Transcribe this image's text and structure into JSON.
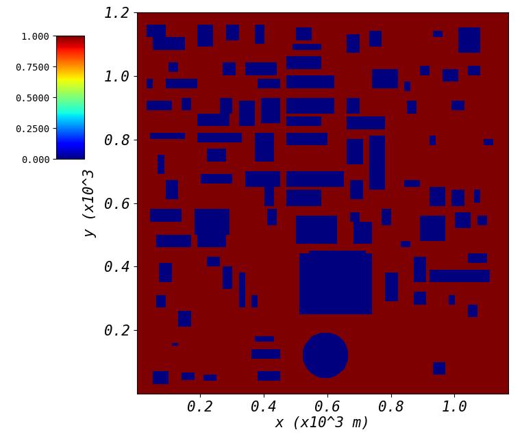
{
  "chart_data": {
    "type": "heatmap",
    "xlabel": "x (x10^3 m)",
    "ylabel": "y (x10^3",
    "xlim": [
      0,
      1.17
    ],
    "ylim": [
      0,
      1.2
    ],
    "xticks": [
      0.2,
      0.4,
      0.6,
      0.8,
      {
        "value": 1.0,
        "label": "1.0"
      }
    ],
    "yticks": [
      0.2,
      0.4,
      0.6,
      0.8,
      {
        "value": 1.0,
        "label": "1.0"
      },
      1.2
    ],
    "background": 1,
    "rectangles": {
      "value": 0,
      "extents": [
        [
          0.03,
          0.09,
          1.12,
          1.16
        ],
        [
          0.05,
          0.15,
          1.08,
          1.12
        ],
        [
          0.19,
          0.24,
          1.09,
          1.16
        ],
        [
          0.28,
          0.32,
          1.11,
          1.16
        ],
        [
          0.37,
          0.4,
          1.1,
          1.16
        ],
        [
          0.5,
          0.55,
          1.11,
          1.15
        ],
        [
          0.49,
          0.58,
          1.08,
          1.1
        ],
        [
          0.66,
          0.7,
          1.07,
          1.13
        ],
        [
          0.73,
          0.77,
          1.09,
          1.14
        ],
        [
          1.01,
          1.08,
          1.07,
          1.15
        ],
        [
          0.93,
          0.96,
          1.12,
          1.14
        ],
        [
          0.1,
          0.13,
          1.01,
          1.04
        ],
        [
          0.03,
          0.05,
          0.96,
          0.99
        ],
        [
          0.09,
          0.19,
          0.96,
          0.99
        ],
        [
          0.27,
          0.31,
          1.0,
          1.04
        ],
        [
          0.34,
          0.44,
          1.0,
          1.04
        ],
        [
          0.38,
          0.45,
          0.96,
          0.99
        ],
        [
          0.47,
          0.62,
          0.96,
          1.0
        ],
        [
          0.47,
          0.58,
          1.02,
          1.06
        ],
        [
          0.74,
          0.82,
          0.96,
          1.02
        ],
        [
          0.84,
          0.86,
          0.95,
          0.98
        ],
        [
          0.89,
          0.92,
          1.0,
          1.03
        ],
        [
          0.96,
          1.01,
          0.98,
          1.02
        ],
        [
          1.04,
          1.08,
          1.0,
          1.03
        ],
        [
          0.03,
          0.11,
          0.89,
          0.92
        ],
        [
          0.14,
          0.17,
          0.89,
          0.93
        ],
        [
          0.19,
          0.29,
          0.84,
          0.88
        ],
        [
          0.26,
          0.3,
          0.88,
          0.93
        ],
        [
          0.32,
          0.37,
          0.84,
          0.92
        ],
        [
          0.39,
          0.45,
          0.85,
          0.93
        ],
        [
          0.47,
          0.62,
          0.88,
          0.93
        ],
        [
          0.47,
          0.58,
          0.84,
          0.87
        ],
        [
          0.66,
          0.78,
          0.83,
          0.87
        ],
        [
          0.66,
          0.7,
          0.88,
          0.93
        ],
        [
          0.85,
          0.88,
          0.88,
          0.92
        ],
        [
          0.99,
          1.03,
          0.89,
          0.92
        ],
        [
          0.04,
          0.15,
          0.8,
          0.82
        ],
        [
          0.19,
          0.33,
          0.79,
          0.82
        ],
        [
          0.37,
          0.43,
          0.73,
          0.82
        ],
        [
          0.47,
          0.6,
          0.78,
          0.82
        ],
        [
          0.22,
          0.28,
          0.73,
          0.77
        ],
        [
          0.66,
          0.71,
          0.72,
          0.8
        ],
        [
          0.73,
          0.78,
          0.64,
          0.81
        ],
        [
          0.92,
          0.94,
          0.78,
          0.81
        ],
        [
          1.09,
          1.12,
          0.78,
          0.8
        ],
        [
          0.065,
          0.085,
          0.69,
          0.75
        ],
        [
          0.2,
          0.3,
          0.66,
          0.69
        ],
        [
          0.34,
          0.45,
          0.65,
          0.7
        ],
        [
          0.47,
          0.65,
          0.65,
          0.7
        ],
        [
          0.47,
          0.58,
          0.59,
          0.64
        ],
        [
          0.67,
          0.71,
          0.61,
          0.67
        ],
        [
          0.84,
          0.89,
          0.65,
          0.67
        ],
        [
          0.92,
          0.97,
          0.59,
          0.65
        ],
        [
          0.99,
          1.03,
          0.59,
          0.64
        ],
        [
          1.06,
          1.08,
          0.6,
          0.64
        ],
        [
          0.09,
          0.13,
          0.61,
          0.67
        ],
        [
          0.4,
          0.43,
          0.59,
          0.66
        ],
        [
          0.04,
          0.14,
          0.54,
          0.58
        ],
        [
          0.18,
          0.29,
          0.5,
          0.58
        ],
        [
          0.19,
          0.28,
          0.46,
          0.5
        ],
        [
          0.41,
          0.44,
          0.53,
          0.58
        ],
        [
          0.5,
          0.63,
          0.47,
          0.56
        ],
        [
          0.67,
          0.7,
          0.54,
          0.57
        ],
        [
          0.68,
          0.74,
          0.47,
          0.54
        ],
        [
          0.77,
          0.8,
          0.53,
          0.58
        ],
        [
          0.89,
          0.97,
          0.48,
          0.56
        ],
        [
          1.0,
          1.05,
          0.52,
          0.57
        ],
        [
          1.07,
          1.1,
          0.53,
          0.56
        ],
        [
          0.06,
          0.17,
          0.46,
          0.5
        ],
        [
          0.83,
          0.86,
          0.46,
          0.48
        ],
        [
          0.51,
          0.74,
          0.25,
          0.44
        ],
        [
          0.54,
          0.72,
          0.44,
          0.45
        ],
        [
          0.07,
          0.11,
          0.35,
          0.41
        ],
        [
          0.22,
          0.26,
          0.4,
          0.43
        ],
        [
          0.27,
          0.3,
          0.33,
          0.4
        ],
        [
          0.32,
          0.34,
          0.27,
          0.38
        ],
        [
          0.36,
          0.38,
          0.27,
          0.31
        ],
        [
          0.06,
          0.09,
          0.27,
          0.31
        ],
        [
          0.13,
          0.17,
          0.21,
          0.26
        ],
        [
          0.78,
          0.82,
          0.29,
          0.38
        ],
        [
          0.87,
          0.91,
          0.35,
          0.43
        ],
        [
          0.92,
          1.0,
          0.35,
          0.39
        ],
        [
          1.0,
          1.11,
          0.35,
          0.39
        ],
        [
          1.04,
          1.1,
          0.41,
          0.44
        ],
        [
          0.87,
          0.91,
          0.28,
          0.32
        ],
        [
          0.98,
          1.0,
          0.28,
          0.31
        ],
        [
          1.04,
          1.07,
          0.24,
          0.28
        ],
        [
          0.11,
          0.13,
          0.15,
          0.16
        ],
        [
          0.37,
          0.43,
          0.165,
          0.18
        ],
        [
          0.36,
          0.45,
          0.11,
          0.14
        ],
        [
          0.38,
          0.45,
          0.04,
          0.07
        ],
        [
          0.05,
          0.1,
          0.03,
          0.07
        ],
        [
          0.14,
          0.18,
          0.045,
          0.065
        ],
        [
          0.21,
          0.25,
          0.04,
          0.06
        ],
        [
          0.93,
          0.97,
          0.06,
          0.1
        ]
      ]
    },
    "circles": {
      "value": 0,
      "items": [
        {
          "center": [
            0.593,
            0.121
          ],
          "radius": 0.072
        }
      ]
    },
    "colorbar": {
      "range": [
        0,
        1
      ],
      "ticks": [
        {
          "value": 0,
          "label": "0.000"
        },
        {
          "value": 0.25,
          "label": "0.2500"
        },
        {
          "value": 0.5,
          "label": "0.5000"
        },
        {
          "value": 0.75,
          "label": "0.7500"
        },
        {
          "value": 1,
          "label": "1.000"
        }
      ]
    }
  }
}
